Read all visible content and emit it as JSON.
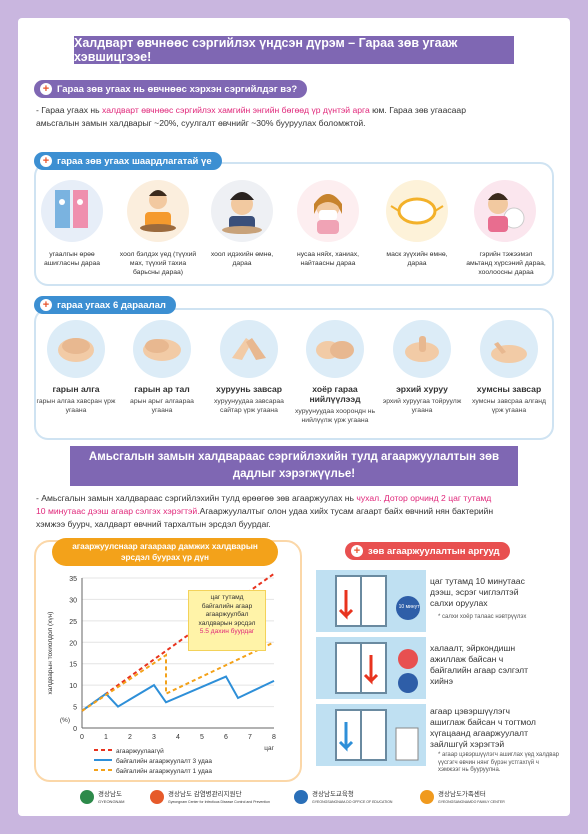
{
  "header": {
    "title": "Халдварт өвчнөөс сэргийлэх үндсэн дүрэм – Гараа зөв угааж хэвшицгээе!"
  },
  "section1": {
    "heading": "Гараа зөв угаах нь өвчнөөс хэрхэн сэргийлдэг вэ?",
    "text_a": "- Гараа угаах нь ",
    "text_hl": "халдварт өвчнөөс сэргийлэх хамгийн энгийн бөгөөд үр дүнтэй арга",
    "text_b": " юм. Гараа зөв угаасаар",
    "text_c": "амьсгалын замын халдварыг ~20%, суулгалт өвчнийг ~30% бууруулах боломжтой."
  },
  "section2": {
    "heading": "гараа зөв угаах шаардлагатай үе",
    "items": [
      {
        "label": "угаалгын өрөө ашигласны дараа"
      },
      {
        "label": "хоол бэлдэх үед (түүхий мах, түүхий тахиа барьсны дараа)"
      },
      {
        "label": "хоол идэхийн өмнө, дараа"
      },
      {
        "label": "нусаа няйх, ханиах, найтаасны дараа"
      },
      {
        "label": "маск зүүхийн өмнө, дараа"
      },
      {
        "label": "гэрийн тэжээмэл амьтанд хүрсэний дараа, хоолоосны дараа"
      }
    ]
  },
  "section3": {
    "heading": "гараа угаах 6 дараалал",
    "steps": [
      {
        "title": "гарын алга",
        "desc": "гарын алгаа хавсран үрж угаана"
      },
      {
        "title": "гарын ар тал",
        "desc": "арын арыг алгаараа угаана"
      },
      {
        "title": "хуруунь завсар",
        "desc": "хуруунуудаа завсараа сайтар үрж угаана"
      },
      {
        "title": "хоёр гараа нийлүүлээд",
        "desc": "хуруунуудаа хоорондн нь нийлүүлж үрж угаана"
      },
      {
        "title": "эрхий хуруу",
        "desc": "эрхий хуруугаа тойруулж угаана"
      },
      {
        "title": "хумсны завсар",
        "desc": "хумсны завсраа алганд үрж угаана"
      }
    ]
  },
  "section4": {
    "banner_line1": "Амьсгалын замын халдвараас сэргийлэхийн тулд агааржуулалтын зөв",
    "banner_line2": "дадлыг хэрэгжүүлье!",
    "text_a": "- Амьсгалын замын халдвараас сэргийлэхийн тулд өрөөгөө зөв агааржуулах нь ",
    "text_hl1": "чухал. Дотор орчинд 2 цаг тутамд",
    "text_hl2": "10 минутаас дээш агаар сэлгэх хэрэгтэй.",
    "text_b": "Агааржуулалтыг олон удаа хийх тусам агаарт байх өвчний нян бактерийн",
    "text_c": "хэмжээ буурч, халдварт өвчний тархалтын эрсдэл буурдаг."
  },
  "chart_panel": {
    "heading_line1": "агааржуулснаар агаараар дамжих халдварын",
    "heading_line2": "эрсдэл буурах үр дүн",
    "callout_line1": "цаг тутамд",
    "callout_line2": "байгалийн агаар",
    "callout_line3": "агааржуулбал",
    "callout_line4": "халдварын эрсдэл",
    "callout_line5": "5.5 дахин буурдаг",
    "ylabel": "халдварын тохиолдол (хүн)",
    "yunit": "(%)",
    "xunit": "цаг"
  },
  "chart_data": {
    "type": "line",
    "x": [
      0,
      1,
      2,
      3,
      4,
      5,
      6,
      7,
      8
    ],
    "ylim": [
      0,
      35
    ],
    "yticks": [
      0,
      5,
      10,
      15,
      20,
      25,
      30,
      35
    ],
    "series": [
      {
        "name": "агааржуулаагүй",
        "color": "#e8331e",
        "dash": true,
        "x": [
          0,
          8
        ],
        "y": [
          4,
          36
        ]
      },
      {
        "name": "байгалийн агааржуулалт 3 удаа",
        "color": "#2e8fd8",
        "dash": false,
        "x": [
          0,
          1,
          1.5,
          3,
          3.5,
          6,
          6.5,
          8
        ],
        "y": [
          4,
          8,
          5,
          10,
          6,
          12,
          7,
          11
        ]
      },
      {
        "name": "байгалийн агааржуулалт 1 удаа",
        "color": "#f3a21a",
        "dash": true,
        "x": [
          0,
          3.5,
          3.5,
          8
        ],
        "y": [
          4,
          17,
          8,
          20
        ]
      }
    ]
  },
  "vent_panel": {
    "heading": "зөв агааржуулалтын аргууд",
    "badge": "10 минут",
    "items": [
      {
        "line1": "цаг тутамд 10 минутаас",
        "line2": "дээш, эсрэг чиглэлтэй",
        "line3": "салхи оруулах",
        "note": "* салхи хоёр талаас нэвтрүүлэх"
      },
      {
        "line1": "халаалт, эйркондишн",
        "line2": "ажиллаж байсан ч",
        "line3": "байгалийн агаар сэлгэлт",
        "line4": "хийнэ"
      },
      {
        "line1": "агаар цэвэршүүлэгч",
        "line2": "ашиглаж байсан ч тогтмол",
        "line3": "хүгацаанд агааржуулалт",
        "line4": "зайлшгүй хэрэгтэй",
        "note": "* агаар цэвэршүүлэгч ашиглах үед халдвар үүсгэгч өвчин нянг бүрэн устгахгүй ч хэмжээг нь бууруулна."
      }
    ]
  },
  "footer": {
    "logos": [
      {
        "name": "경상남도",
        "sub": "GYEONGNAM",
        "color": "#2d8a4a"
      },
      {
        "name": "경상남도 감염병관리지원단",
        "sub": "Gyeongnam Center for Infectious Disease Control and Prevention",
        "color": "#e65a2a"
      },
      {
        "name": "경상남도교육청",
        "sub": "GYEONGSANGNAM-DO OFFICE OF EDUCATION",
        "color": "#2a6fb8"
      },
      {
        "name": "경상남도가족센터",
        "sub": "GYEONGSANGNAMDO FAMILY CENTER",
        "color": "#f09a1e"
      }
    ]
  },
  "colors": {
    "purple": "#7f67b3",
    "pink_text": "#e0277a",
    "orange": "#f3a21a",
    "blue": "#2e8fd8",
    "red": "#e8331e"
  }
}
